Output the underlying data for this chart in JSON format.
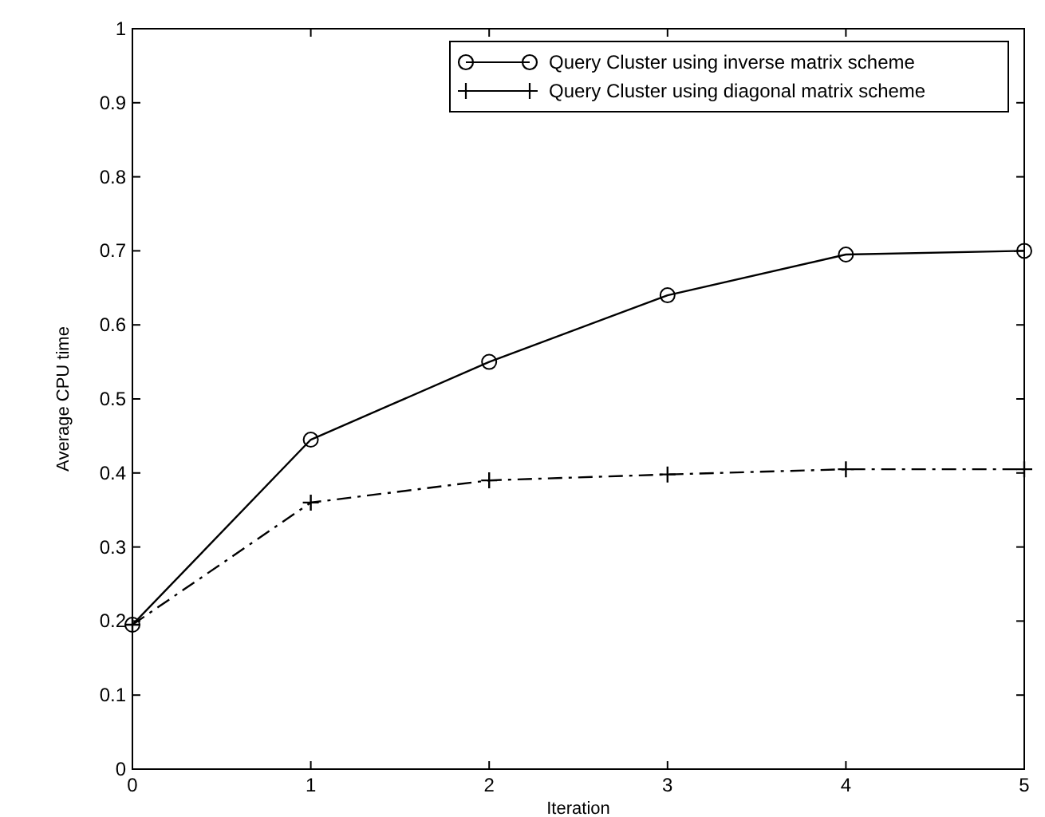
{
  "chart_data": {
    "type": "line",
    "xlabel": "Iteration",
    "ylabel": "Average CPU time",
    "x": [
      0,
      1,
      2,
      3,
      4,
      5
    ],
    "series": [
      {
        "name": "Query Cluster using inverse matrix scheme",
        "color": "#000000",
        "values": [
          0.195,
          0.445,
          0.55,
          0.64,
          0.695,
          0.7
        ],
        "marker": "circle",
        "line_style": "solid"
      },
      {
        "name": "Query Cluster using diagonal matrix scheme",
        "color": "#000000",
        "values": [
          0.195,
          0.36,
          0.39,
          0.398,
          0.405,
          0.405
        ],
        "marker": "cross",
        "line_style": "dashdot"
      }
    ],
    "xlim": [
      0,
      5
    ],
    "xticks": [
      0,
      1,
      2,
      3,
      4,
      5
    ],
    "ylim": [
      0,
      1
    ],
    "yticks": [
      0,
      0.1,
      0.2,
      0.3,
      0.4,
      0.5,
      0.6,
      0.7,
      0.8,
      0.9,
      1
    ],
    "grid": false,
    "legend": "top right"
  }
}
